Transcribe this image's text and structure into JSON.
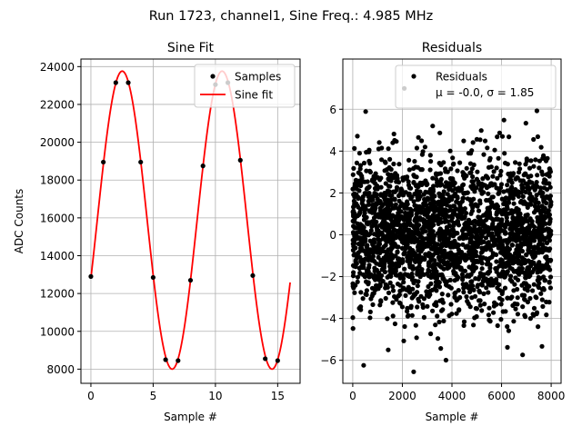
{
  "figure": {
    "suptitle": "Run 1723, channel1, Sine Freq.: 4.985 MHz"
  },
  "colors": {
    "samples": "#000000",
    "sine_fit": "#ff0000",
    "grid": "#b0b0b0"
  },
  "chart_data": [
    {
      "type": "line",
      "title": "Sine Fit",
      "xlabel": "Sample #",
      "ylabel": "ADC Counts",
      "xlim": [
        -0.8,
        16.8
      ],
      "ylim": [
        7250,
        24400
      ],
      "xticks": [
        0,
        5,
        10,
        15
      ],
      "yticks": [
        8000,
        10000,
        12000,
        14000,
        16000,
        18000,
        20000,
        22000,
        24000
      ],
      "grid": true,
      "legend_position": "top-right",
      "series": [
        {
          "name": "Samples",
          "style": "markers",
          "x": [
            0,
            1,
            2,
            3,
            4,
            5,
            6,
            7,
            8,
            9,
            10,
            11,
            12,
            13,
            14,
            15
          ],
          "y": [
            12900,
            18950,
            23150,
            23150,
            18950,
            12850,
            8500,
            8450,
            12700,
            18750,
            23050,
            23150,
            19050,
            12950,
            8550,
            8450
          ]
        },
        {
          "name": "Sine fit",
          "style": "line",
          "fit": {
            "offset": 15880,
            "amplitude": 7880,
            "period": 8.02,
            "phase": -0.4,
            "x_range": [
              0,
              16
            ]
          }
        }
      ]
    },
    {
      "type": "scatter",
      "title": "Residuals",
      "xlabel": "Sample #",
      "ylabel": "",
      "xlim": [
        -400,
        8400
      ],
      "ylim": [
        -7.1,
        8.4
      ],
      "xticks": [
        0,
        2000,
        4000,
        6000,
        8000
      ],
      "yticks": [
        -6,
        -4,
        -2,
        0,
        2,
        4,
        6
      ],
      "grid": true,
      "legend_position": "top-right",
      "legend_entries": [
        "Residuals",
        "μ = -0.0, σ = 1.85"
      ],
      "series": [
        {
          "name": "Residuals",
          "n_points": 8000,
          "mean": -0.0,
          "std": 1.85,
          "x_range": [
            0,
            7999
          ]
        }
      ]
    }
  ]
}
